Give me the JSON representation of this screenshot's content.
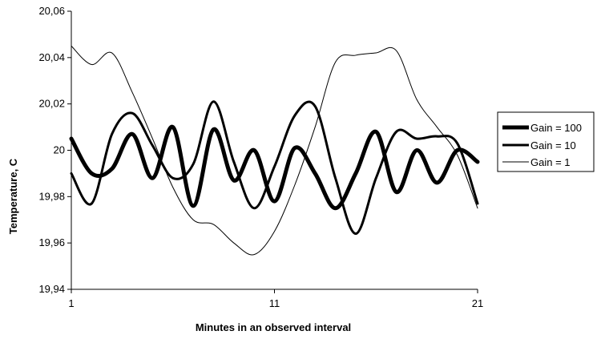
{
  "chart_data": {
    "type": "line",
    "title": "",
    "xlabel": "Minutes in an observed interval",
    "ylabel": "Temperature, C",
    "xlim": [
      1,
      21
    ],
    "ylim": [
      19.94,
      20.06
    ],
    "x_ticks": [
      "1",
      "11",
      "21"
    ],
    "y_ticks": [
      "19,94",
      "19,96",
      "19,98",
      "20",
      "20,02",
      "20,04",
      "20,06"
    ],
    "grid": false,
    "legend_position": "right",
    "series": [
      {
        "name": "Gain = 100",
        "x": [
          1,
          2,
          3,
          4,
          5,
          6,
          7,
          8,
          9,
          10,
          11,
          12,
          13,
          14,
          15,
          16,
          17,
          18,
          19,
          20,
          21
        ],
        "values": [
          20.005,
          19.99,
          19.992,
          20.007,
          19.988,
          20.01,
          19.976,
          20.009,
          19.987,
          20.0,
          19.978,
          20.001,
          19.99,
          19.975,
          19.99,
          20.008,
          19.982,
          20.0,
          19.986,
          20.0,
          19.995
        ]
      },
      {
        "name": "Gain = 10",
        "x": [
          1,
          2,
          3,
          4,
          5,
          6,
          7,
          8,
          9,
          10,
          11,
          12,
          13,
          14,
          15,
          16,
          17,
          18,
          19,
          20,
          21
        ],
        "values": [
          19.99,
          19.977,
          20.007,
          20.016,
          20.002,
          19.988,
          19.994,
          20.021,
          19.995,
          19.975,
          19.993,
          20.015,
          20.019,
          19.988,
          19.964,
          19.988,
          20.008,
          20.005,
          20.006,
          20.003,
          19.977
        ]
      },
      {
        "name": "Gain = 1",
        "x": [
          1,
          2,
          3,
          4,
          5,
          6,
          7,
          8,
          9,
          10,
          11,
          12,
          13,
          14,
          15,
          16,
          17,
          18,
          19,
          20,
          21
        ],
        "values": [
          20.045,
          20.037,
          20.042,
          20.025,
          20.005,
          19.984,
          19.97,
          19.968,
          19.96,
          19.955,
          19.965,
          19.985,
          20.01,
          20.038,
          20.041,
          20.042,
          20.043,
          20.022,
          20.01,
          19.998,
          19.975
        ]
      }
    ]
  },
  "legend": [
    {
      "label": "Gain = 100"
    },
    {
      "label": "Gain = 10"
    },
    {
      "label": "Gain = 1"
    }
  ]
}
